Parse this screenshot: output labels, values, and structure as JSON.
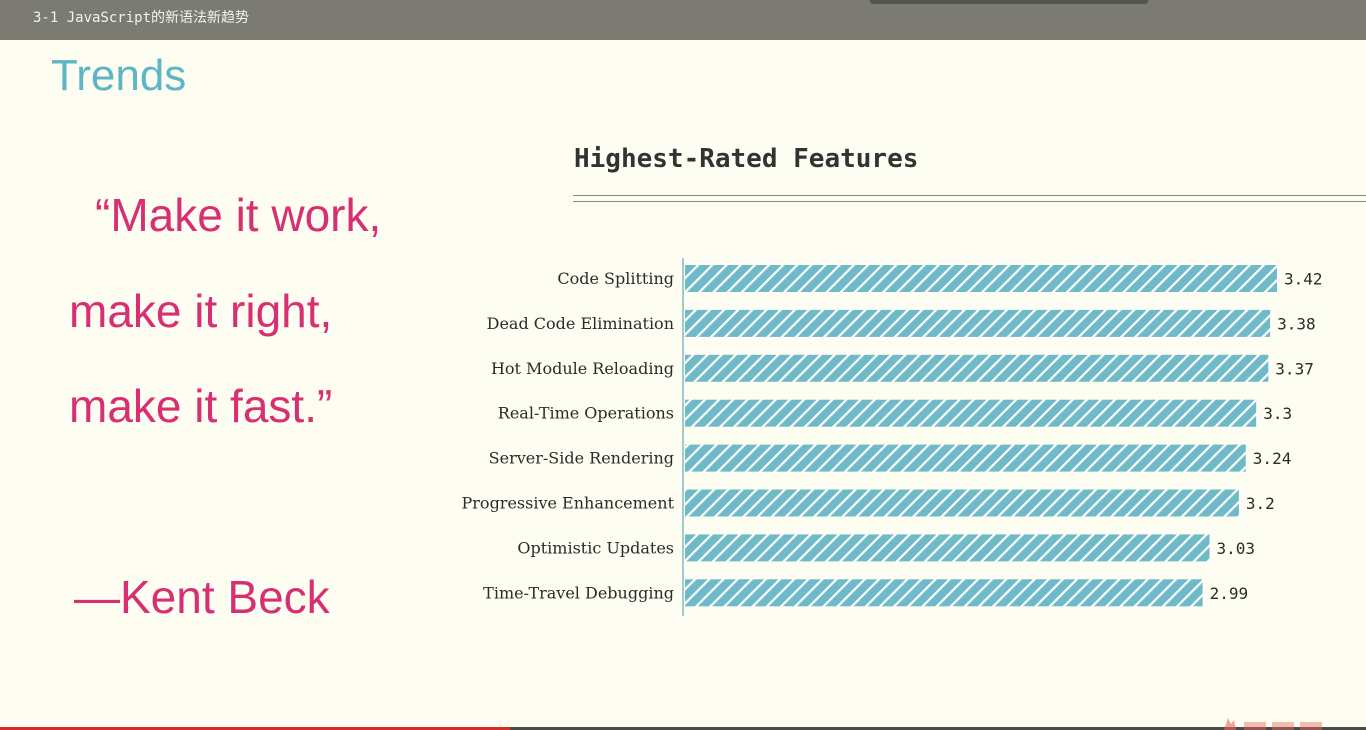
{
  "window": {
    "title": "3-1 JavaScript的新语法新趋势"
  },
  "slide": {
    "title": "Trends",
    "quote": {
      "line1": "“Make it work,",
      "line2": "make it right,",
      "line3": "make it fast.”",
      "author": "—Kent Beck"
    }
  },
  "colors": {
    "bar_fill": "#6fbac9",
    "bar_stripe": "#ffffff",
    "title_accent": "#5eb5c3",
    "quote": "#d82f72"
  },
  "chart_data": {
    "type": "bar",
    "orientation": "horizontal",
    "title": "Highest-Rated Features",
    "categories": [
      "Code Splitting",
      "Dead Code Elimination",
      "Hot Module Reloading",
      "Real-Time Operations",
      "Server-Side Rendering",
      "Progressive Enhancement",
      "Optimistic Updates",
      "Time-Travel Debugging"
    ],
    "values": [
      3.42,
      3.38,
      3.37,
      3.3,
      3.24,
      3.2,
      3.03,
      2.99
    ],
    "value_labels": [
      "3.42",
      "3.38",
      "3.37",
      "3.3",
      "3.24",
      "3.2",
      "3.03",
      "2.99"
    ],
    "xlabel": "",
    "ylabel": "",
    "xlim": [
      0,
      3.42
    ],
    "grid": false,
    "legend": "none",
    "bar_pattern": "diagonal-stripes"
  }
}
